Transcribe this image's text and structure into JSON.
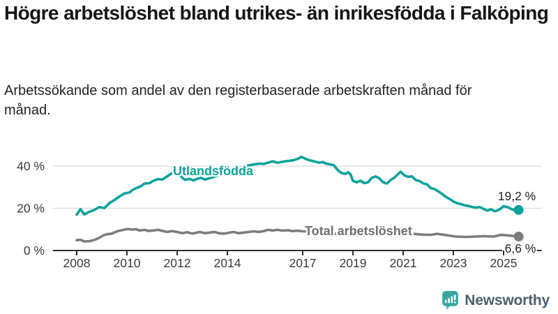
{
  "header": {
    "title": "Högre arbetslöshet bland utrikes- än inrikesfödda i Falköping",
    "subtitle": "Arbetssökande som andel av den registerbaserade arbetskraften månad för månad."
  },
  "footer": {
    "brand": "Newsworthy",
    "logo_icon": "newsworthy-chart-bubble-icon"
  },
  "colors": {
    "teal": "#0ba29c",
    "gray": "#7c7c80",
    "axis": "#2e2e2e",
    "grid": "#dcdcdc",
    "tick_text": "#3a3a3a",
    "value_text": "#222222",
    "total_label": "#6e6e73",
    "logo_teal": "#35a7a0",
    "brand_text": "#4c5f6e"
  },
  "chart_data": {
    "type": "line",
    "unit": "%",
    "grid": "horizontal",
    "legend_position": "inline-labels",
    "ylim": [
      0,
      48
    ],
    "xlim": [
      2007.9,
      2026.4
    ],
    "y_ticks": [
      {
        "value": 0,
        "label": "0 %"
      },
      {
        "value": 20,
        "label": "20 %"
      },
      {
        "value": 40,
        "label": "40 %"
      }
    ],
    "x_ticks": [
      {
        "value": 2008,
        "label": "2008"
      },
      {
        "value": 2010,
        "label": "2010"
      },
      {
        "value": 2012,
        "label": "2012"
      },
      {
        "value": 2014,
        "label": "2014"
      },
      {
        "value": 2017,
        "label": "2017"
      },
      {
        "value": 2019,
        "label": "2019"
      },
      {
        "value": 2021,
        "label": "2021"
      },
      {
        "value": 2023,
        "label": "2023"
      },
      {
        "value": 2025,
        "label": "2025"
      }
    ],
    "series": [
      {
        "name": "utlandsfodda",
        "label": "Utlandsfödda",
        "color": "#0ba29c",
        "end_label": "19,2 %",
        "end_value": 19.2,
        "points": [
          [
            2008.0,
            17.0
          ],
          [
            2008.15,
            19.6
          ],
          [
            2008.3,
            17.1
          ],
          [
            2008.5,
            18.3
          ],
          [
            2008.7,
            19.2
          ],
          [
            2008.9,
            20.6
          ],
          [
            2009.1,
            20.1
          ],
          [
            2009.3,
            22.4
          ],
          [
            2009.5,
            23.9
          ],
          [
            2009.7,
            25.6
          ],
          [
            2009.9,
            27.0
          ],
          [
            2010.1,
            27.5
          ],
          [
            2010.25,
            28.9
          ],
          [
            2010.4,
            29.7
          ],
          [
            2010.55,
            30.4
          ],
          [
            2010.7,
            31.7
          ],
          [
            2010.9,
            31.9
          ],
          [
            2011.05,
            33.0
          ],
          [
            2011.25,
            33.9
          ],
          [
            2011.4,
            33.6
          ],
          [
            2011.6,
            35.1
          ],
          [
            2011.75,
            36.3
          ],
          [
            2011.9,
            37.5
          ],
          [
            2012.1,
            35.6
          ],
          [
            2012.3,
            33.5
          ],
          [
            2012.5,
            33.9
          ],
          [
            2012.65,
            33.2
          ],
          [
            2012.8,
            34.0
          ],
          [
            2012.95,
            34.4
          ],
          [
            2013.1,
            33.6
          ],
          [
            2013.3,
            34.3
          ],
          [
            2013.55,
            35.2
          ],
          [
            2013.8,
            36.4
          ],
          [
            2014.05,
            37.9
          ],
          [
            2014.3,
            38.8
          ],
          [
            2014.55,
            39.3
          ],
          [
            2014.8,
            40.2
          ],
          [
            2015.05,
            40.8
          ],
          [
            2015.3,
            41.2
          ],
          [
            2015.45,
            41.0
          ],
          [
            2015.6,
            41.6
          ],
          [
            2015.8,
            42.2
          ],
          [
            2016.0,
            41.6
          ],
          [
            2016.2,
            42.0
          ],
          [
            2016.4,
            42.4
          ],
          [
            2016.6,
            42.7
          ],
          [
            2016.8,
            43.4
          ],
          [
            2016.95,
            44.4
          ],
          [
            2017.05,
            43.8
          ],
          [
            2017.2,
            43.0
          ],
          [
            2017.35,
            42.5
          ],
          [
            2017.5,
            42.1
          ],
          [
            2017.65,
            41.6
          ],
          [
            2017.8,
            41.9
          ],
          [
            2017.95,
            41.1
          ],
          [
            2018.1,
            40.8
          ],
          [
            2018.25,
            40.3
          ],
          [
            2018.4,
            38.0
          ],
          [
            2018.55,
            36.7
          ],
          [
            2018.7,
            36.3
          ],
          [
            2018.8,
            37.1
          ],
          [
            2018.9,
            36.2
          ],
          [
            2019.0,
            33.0
          ],
          [
            2019.15,
            32.3
          ],
          [
            2019.3,
            33.1
          ],
          [
            2019.45,
            31.9
          ],
          [
            2019.6,
            32.3
          ],
          [
            2019.75,
            34.4
          ],
          [
            2019.9,
            35.1
          ],
          [
            2020.05,
            34.2
          ],
          [
            2020.2,
            32.3
          ],
          [
            2020.35,
            31.7
          ],
          [
            2020.5,
            33.4
          ],
          [
            2020.65,
            34.5
          ],
          [
            2020.8,
            36.2
          ],
          [
            2020.9,
            37.3
          ],
          [
            2021.05,
            35.6
          ],
          [
            2021.2,
            34.9
          ],
          [
            2021.35,
            35.1
          ],
          [
            2021.5,
            33.4
          ],
          [
            2021.65,
            32.9
          ],
          [
            2021.8,
            31.8
          ],
          [
            2021.95,
            31.3
          ],
          [
            2022.1,
            29.6
          ],
          [
            2022.25,
            29.1
          ],
          [
            2022.4,
            28.0
          ],
          [
            2022.55,
            26.8
          ],
          [
            2022.7,
            25.4
          ],
          [
            2022.85,
            24.4
          ],
          [
            2023.0,
            23.2
          ],
          [
            2023.15,
            22.4
          ],
          [
            2023.3,
            22.0
          ],
          [
            2023.45,
            21.4
          ],
          [
            2023.6,
            21.1
          ],
          [
            2023.75,
            20.6
          ],
          [
            2023.9,
            20.3
          ],
          [
            2024.05,
            20.6
          ],
          [
            2024.2,
            19.7
          ],
          [
            2024.35,
            18.9
          ],
          [
            2024.5,
            19.5
          ],
          [
            2024.65,
            18.6
          ],
          [
            2024.8,
            19.2
          ],
          [
            2024.9,
            20.0
          ],
          [
            2025.0,
            21.0
          ],
          [
            2025.15,
            20.6
          ],
          [
            2025.3,
            19.7
          ],
          [
            2025.45,
            19.0
          ],
          [
            2025.6,
            19.2
          ]
        ]
      },
      {
        "name": "total-arbetsloshet",
        "label": "Total arbetslöshet",
        "color": "#7c7c80",
        "end_label": "6,6 %",
        "end_value": 6.6,
        "points": [
          [
            2008.0,
            4.9
          ],
          [
            2008.15,
            5.1
          ],
          [
            2008.3,
            4.3
          ],
          [
            2008.5,
            4.4
          ],
          [
            2008.7,
            5.0
          ],
          [
            2008.9,
            6.0
          ],
          [
            2009.05,
            7.1
          ],
          [
            2009.2,
            7.7
          ],
          [
            2009.4,
            8.0
          ],
          [
            2009.55,
            8.8
          ],
          [
            2009.7,
            9.4
          ],
          [
            2009.9,
            9.9
          ],
          [
            2010.05,
            10.2
          ],
          [
            2010.2,
            9.9
          ],
          [
            2010.35,
            10.1
          ],
          [
            2010.5,
            9.5
          ],
          [
            2010.7,
            9.8
          ],
          [
            2010.85,
            9.3
          ],
          [
            2011.05,
            9.5
          ],
          [
            2011.25,
            9.8
          ],
          [
            2011.4,
            9.3
          ],
          [
            2011.6,
            8.8
          ],
          [
            2011.8,
            9.2
          ],
          [
            2012.0,
            8.8
          ],
          [
            2012.2,
            8.2
          ],
          [
            2012.4,
            8.7
          ],
          [
            2012.6,
            8.0
          ],
          [
            2012.75,
            8.4
          ],
          [
            2012.9,
            8.8
          ],
          [
            2013.1,
            8.2
          ],
          [
            2013.3,
            8.5
          ],
          [
            2013.5,
            8.8
          ],
          [
            2013.65,
            8.2
          ],
          [
            2013.85,
            8.0
          ],
          [
            2014.05,
            8.4
          ],
          [
            2014.25,
            8.8
          ],
          [
            2014.45,
            8.2
          ],
          [
            2014.65,
            8.5
          ],
          [
            2014.85,
            8.8
          ],
          [
            2015.05,
            9.1
          ],
          [
            2015.25,
            8.8
          ],
          [
            2015.45,
            9.2
          ],
          [
            2015.6,
            9.8
          ],
          [
            2015.8,
            9.5
          ],
          [
            2016.0,
            9.8
          ],
          [
            2016.2,
            9.4
          ],
          [
            2016.4,
            9.6
          ],
          [
            2016.6,
            9.2
          ],
          [
            2016.8,
            9.4
          ],
          [
            2017.0,
            9.1
          ],
          [
            2017.3,
            8.9
          ],
          [
            2017.6,
            8.6
          ],
          [
            2017.9,
            8.3
          ],
          [
            2018.2,
            8.0
          ],
          [
            2018.5,
            7.8
          ],
          [
            2018.8,
            7.6
          ],
          [
            2019.1,
            7.4
          ],
          [
            2019.4,
            7.3
          ],
          [
            2019.7,
            7.2
          ],
          [
            2020.0,
            7.7
          ],
          [
            2020.3,
            8.5
          ],
          [
            2020.6,
            8.7
          ],
          [
            2020.9,
            8.4
          ],
          [
            2021.2,
            8.1
          ],
          [
            2021.5,
            7.8
          ],
          [
            2021.8,
            7.5
          ],
          [
            2022.1,
            7.4
          ],
          [
            2022.35,
            7.9
          ],
          [
            2022.6,
            7.5
          ],
          [
            2022.8,
            7.1
          ],
          [
            2023.1,
            6.6
          ],
          [
            2023.5,
            6.4
          ],
          [
            2023.9,
            6.6
          ],
          [
            2024.2,
            6.8
          ],
          [
            2024.6,
            6.6
          ],
          [
            2024.9,
            7.4
          ],
          [
            2025.2,
            7.1
          ],
          [
            2025.6,
            6.6
          ]
        ]
      }
    ]
  }
}
